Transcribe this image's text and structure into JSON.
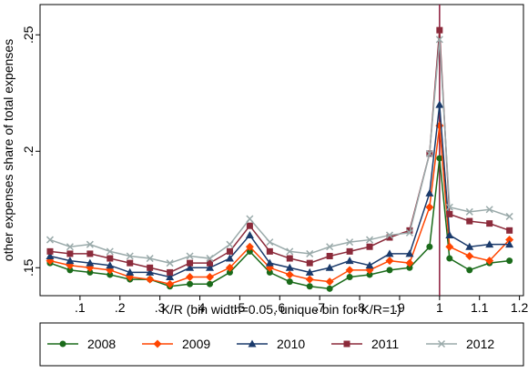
{
  "chart_data": {
    "type": "line",
    "x_label": "K/R (bin width=0.05, unique bin for K/R=1)",
    "y_label": "other expenses share of total expenses",
    "x": [
      0.025,
      0.075,
      0.125,
      0.175,
      0.225,
      0.275,
      0.325,
      0.375,
      0.425,
      0.475,
      0.525,
      0.575,
      0.625,
      0.675,
      0.725,
      0.775,
      0.825,
      0.875,
      0.925,
      0.975,
      1,
      1.025,
      1.075,
      1.125,
      1.175
    ],
    "series": [
      {
        "name": "2008",
        "color": "#1a6b1a",
        "marker": "circle",
        "values": [
          0.152,
          0.149,
          0.148,
          0.147,
          0.145,
          0.145,
          0.142,
          0.143,
          0.143,
          0.148,
          0.157,
          0.148,
          0.144,
          0.142,
          0.141,
          0.146,
          0.147,
          0.149,
          0.15,
          0.159,
          0.197,
          0.154,
          0.149,
          0.152,
          0.153
        ]
      },
      {
        "name": "2009",
        "color": "#ff4500",
        "marker": "diamond",
        "values": [
          0.153,
          0.151,
          0.15,
          0.149,
          0.146,
          0.145,
          0.143,
          0.146,
          0.146,
          0.15,
          0.159,
          0.15,
          0.147,
          0.145,
          0.144,
          0.149,
          0.149,
          0.153,
          0.152,
          0.176,
          0.211,
          0.159,
          0.155,
          0.153,
          0.162
        ]
      },
      {
        "name": "2010",
        "color": "#1a3a6b",
        "marker": "triangle",
        "values": [
          0.155,
          0.153,
          0.152,
          0.151,
          0.148,
          0.148,
          0.146,
          0.15,
          0.15,
          0.154,
          0.164,
          0.152,
          0.15,
          0.148,
          0.15,
          0.153,
          0.151,
          0.156,
          0.156,
          0.182,
          0.22,
          0.164,
          0.159,
          0.16,
          0.16
        ]
      },
      {
        "name": "2011",
        "color": "#8b2a3a",
        "marker": "square",
        "values": [
          0.157,
          0.156,
          0.156,
          0.154,
          0.152,
          0.15,
          0.148,
          0.152,
          0.152,
          0.157,
          0.168,
          0.157,
          0.154,
          0.152,
          0.155,
          0.157,
          0.159,
          0.163,
          0.166,
          0.199,
          0.252,
          0.173,
          0.17,
          0.169,
          0.166
        ]
      },
      {
        "name": "2012",
        "color": "#9aaaaa",
        "marker": "x",
        "values": [
          0.162,
          0.159,
          0.16,
          0.157,
          0.155,
          0.154,
          0.152,
          0.155,
          0.154,
          0.16,
          0.171,
          0.161,
          0.157,
          0.156,
          0.159,
          0.161,
          0.162,
          0.164,
          0.165,
          0.199,
          0.248,
          0.176,
          0.174,
          0.175,
          0.172
        ]
      }
    ],
    "xlim": [
      0,
      1.21
    ],
    "ylim": [
      0.138,
      0.263
    ],
    "xticks": [
      {
        "value": 0.1,
        "label": ".1"
      },
      {
        "value": 0.2,
        "label": ".2"
      },
      {
        "value": 0.3,
        "label": ".3"
      },
      {
        "value": 0.4,
        "label": ".4"
      },
      {
        "value": 0.5,
        "label": ".5"
      },
      {
        "value": 0.6,
        "label": ".6"
      },
      {
        "value": 0.7,
        "label": ".7"
      },
      {
        "value": 0.8,
        "label": ".8"
      },
      {
        "value": 0.9,
        "label": ".9"
      },
      1,
      1.1,
      1.2
    ],
    "yticks": [
      {
        "value": 0.15,
        "label": ".15"
      },
      {
        "value": 0.2,
        "label": ".2"
      },
      {
        "value": 0.25,
        "label": ".25"
      }
    ],
    "reference_line": {
      "x": 1,
      "color": "#8b1a3a"
    },
    "grid": false,
    "legend": "bottom"
  }
}
